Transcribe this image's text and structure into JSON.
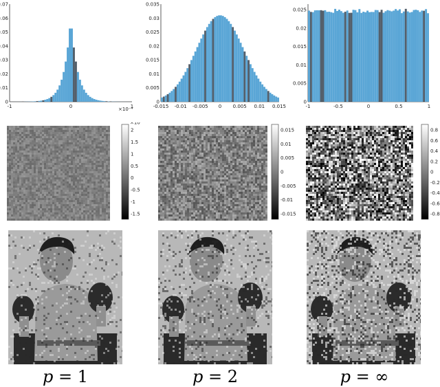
{
  "chart_data": [
    {
      "type": "bar",
      "panel": "histogram",
      "p_label": "p = 1",
      "distribution": "laplace",
      "xlim": [
        -1,
        1
      ],
      "x_scale_label": "×10⁻⁴",
      "ylim": [
        0,
        0.07
      ],
      "x_ticks": [
        "-1",
        "0",
        "1"
      ],
      "y_ticks": [
        "0",
        "0.01",
        "0.02",
        "0.03",
        "0.04",
        "0.05",
        "0.06",
        "0.07"
      ],
      "peak": 0.061
    },
    {
      "type": "bar",
      "panel": "histogram",
      "p_label": "p = 2",
      "distribution": "gaussian",
      "xlim": [
        -0.015,
        0.015
      ],
      "ylim": [
        0,
        0.035
      ],
      "x_ticks": [
        "-0.015",
        "-0.01",
        "-0.005",
        "0",
        "0.005",
        "0.01",
        "0.015"
      ],
      "y_ticks": [
        "0",
        "0.005",
        "0.01",
        "0.015",
        "0.02",
        "0.025",
        "0.03",
        "0.035"
      ],
      "peak": 0.031
    },
    {
      "type": "bar",
      "panel": "histogram",
      "p_label": "p = ∞",
      "distribution": "uniform",
      "xlim": [
        -1,
        1
      ],
      "ylim": [
        0,
        0.0265
      ],
      "x_ticks": [
        "-1",
        "-0.5",
        "0",
        "0.5",
        "1"
      ],
      "y_ticks": [
        "0",
        "0.005",
        "0.01",
        "0.015",
        "0.02",
        "0.025"
      ],
      "peak": 0.025
    },
    {
      "type": "heatmap",
      "panel": "noise",
      "p_label": "p = 1",
      "colorbar_scale_label": "×10⁻⁴",
      "colorbar_ticks": [
        "2",
        "1.5",
        "1",
        "0.5",
        "0",
        "-0.5",
        "-1",
        "-1.5"
      ],
      "contrast": 0.18
    },
    {
      "type": "heatmap",
      "panel": "noise",
      "p_label": "p = 2",
      "colorbar_ticks": [
        "0.015",
        "0.01",
        "0.005",
        "0",
        "-0.005",
        "-0.01",
        "-0.015"
      ],
      "contrast": 0.35
    },
    {
      "type": "heatmap",
      "panel": "noise",
      "p_label": "p = ∞",
      "colorbar_ticks": [
        "0.8",
        "0.6",
        "0.4",
        "0.2",
        "0",
        "-0.2",
        "-0.4",
        "-0.6",
        "-0.8"
      ],
      "contrast": 1.0
    }
  ],
  "photos": [
    {
      "label_p": "p",
      "label_eq": "=",
      "label_val": "1",
      "noise": 0.25
    },
    {
      "label_p": "p",
      "label_eq": "=",
      "label_val": "2",
      "noise": 0.35
    },
    {
      "label_p": "p",
      "label_eq": "=",
      "label_val": "∞",
      "noise": 0.6
    }
  ],
  "colors": {
    "bar_fill": "#5aa6d6",
    "bar_dark": "#1a2a3a",
    "axis": "#333333"
  }
}
